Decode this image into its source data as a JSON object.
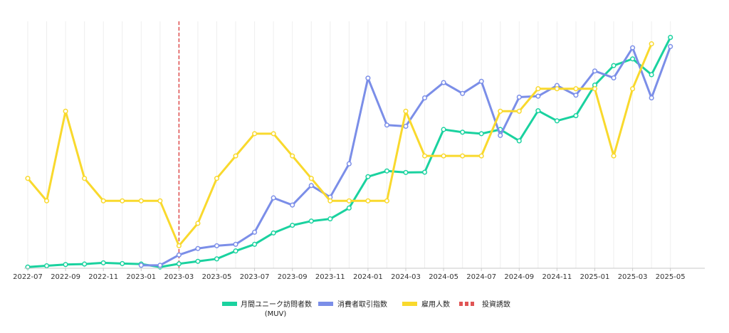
{
  "chart_data": {
    "type": "line",
    "title": "",
    "xlabel": "",
    "ylabel": "",
    "grid": "vertical",
    "legend_position": "bottom-center",
    "x": [
      "2022-07",
      "2022-08",
      "2022-09",
      "2022-10",
      "2022-11",
      "2022-12",
      "2023-01",
      "2023-02",
      "2023-03",
      "2023-04",
      "2023-05",
      "2023-06",
      "2023-07",
      "2023-08",
      "2023-09",
      "2023-10",
      "2023-11",
      "2023-12",
      "2024-01",
      "2024-02",
      "2024-03",
      "2024-04",
      "2024-05",
      "2024-06",
      "2024-07",
      "2024-08",
      "2024-09",
      "2024-10",
      "2024-11",
      "2024-12",
      "2025-01",
      "2025-02",
      "2025-03",
      "2025-04",
      "2025-05"
    ],
    "x_tick_labels": [
      "2022-07",
      "2022-09",
      "2022-11",
      "2023-01",
      "2023-03",
      "2023-05",
      "2023-07",
      "2023-09",
      "2023-11",
      "2024-01",
      "2024-03",
      "2024-05",
      "2024-07",
      "2024-09",
      "2024-11",
      "2025-01",
      "2025-03",
      "2025-05"
    ],
    "ylim": [
      0,
      100
    ],
    "series": [
      {
        "name": "月間ユニーク訪問者数",
        "name_line2": "(MUV)",
        "color": "#1ad29f",
        "values": [
          0.5,
          1,
          1.5,
          1.7,
          2.2,
          1.9,
          1.7,
          0.5,
          1.8,
          2.8,
          3.8,
          7,
          9.7,
          14.3,
          17.4,
          19.1,
          20,
          24.4,
          37.1,
          39.4,
          38.8,
          38.9,
          56.2,
          55.1,
          54.5,
          56.2,
          51.6,
          63.8,
          59.7,
          61.8,
          74.2,
          82.1,
          84.8,
          78.4,
          93.5
        ]
      },
      {
        "name": "消費者取引指数",
        "color": "#7b8ee8",
        "values": [
          null,
          null,
          null,
          null,
          null,
          null,
          1.2,
          1.2,
          5.4,
          8,
          9.1,
          9.7,
          14.6,
          28.5,
          25.6,
          33.5,
          28.8,
          42.3,
          77,
          58,
          57.5,
          69,
          75.2,
          70.8,
          75.7,
          53.8,
          69.3,
          69.7,
          74,
          70.1,
          79.9,
          77.1,
          89.3,
          69,
          89.8
        ]
      },
      {
        "name": "雇用人数",
        "color": "#f9d92d",
        "values": [
          36.4,
          27.3,
          63.6,
          36.4,
          27.3,
          27.3,
          27.3,
          27.3,
          9.1,
          18.2,
          36.4,
          45.5,
          54.5,
          54.5,
          45.5,
          36.4,
          27.3,
          27.3,
          27.3,
          27.3,
          63.6,
          45.5,
          45.5,
          45.5,
          45.5,
          63.6,
          63.6,
          72.7,
          72.7,
          72.7,
          72.7,
          45.5,
          72.7,
          90.9,
          null
        ]
      }
    ],
    "annotations": [
      {
        "type": "vertical-line",
        "x": "2023-03",
        "label": "投資誘致",
        "color": "#e05555",
        "style": "dashed"
      }
    ]
  }
}
